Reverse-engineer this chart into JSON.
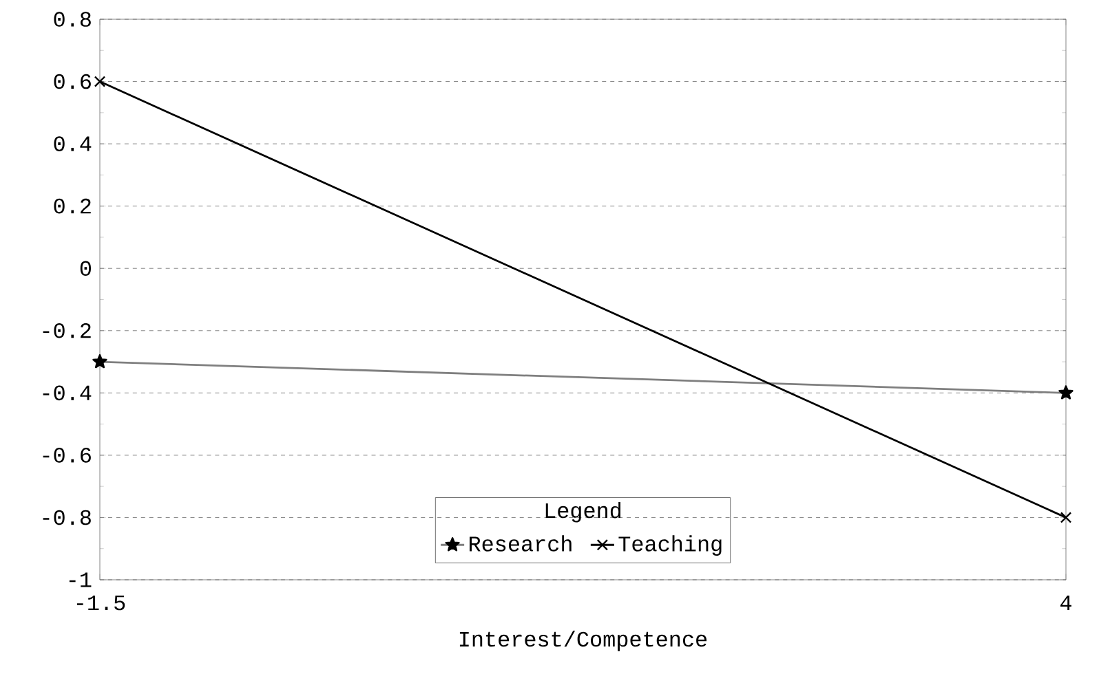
{
  "chart_data": {
    "type": "line",
    "xlabel": "Interest/Competence",
    "legend_title": "Legend",
    "x": [
      -1.5,
      4
    ],
    "series": [
      {
        "name": "Research",
        "color": "#7f7f7f",
        "values": [
          -0.3,
          -0.4
        ],
        "marker": "star"
      },
      {
        "name": "Teaching",
        "color": "#000000",
        "values": [
          0.6,
          -0.8
        ],
        "marker": "cross"
      }
    ],
    "xlim": [
      -1.5,
      4
    ],
    "xticks": [
      -1.5,
      4
    ],
    "ylim": [
      -1,
      0.8
    ],
    "yticks": [
      -1,
      -0.8,
      -0.6,
      -0.4,
      -0.2,
      0,
      0.2,
      0.4,
      0.6,
      0.8
    ],
    "grid": "y",
    "legend": "bottom",
    "line_style": "solid"
  }
}
